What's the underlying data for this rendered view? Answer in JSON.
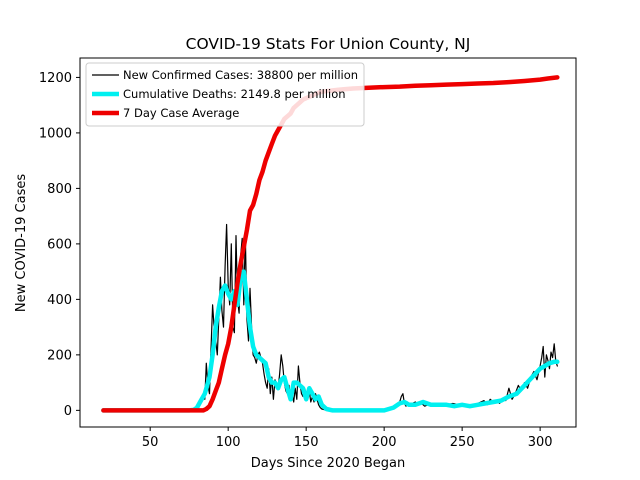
{
  "chart_data": {
    "type": "line",
    "title": "COVID-19 Stats For Union County, NJ",
    "xlabel": "Days Since 2020 Began",
    "ylabel": "New COVID-19 Cases",
    "xlim": [
      5,
      323
    ],
    "ylim": [
      -60,
      1270
    ],
    "xticks": [
      50,
      100,
      150,
      200,
      250,
      300
    ],
    "yticks": [
      0,
      200,
      400,
      600,
      800,
      1000,
      1200
    ],
    "grid": false,
    "legend_position": "upper-left",
    "series": [
      {
        "name": "New Confirmed Cases: 38800 per million",
        "color": "#000000",
        "style": "thin",
        "x": [
          20,
          30,
          40,
          50,
          60,
          70,
          78,
          80,
          82,
          84,
          85,
          86,
          87,
          88,
          89,
          90,
          91,
          92,
          93,
          94,
          95,
          96,
          97,
          98,
          99,
          100,
          101,
          102,
          103,
          104,
          105,
          106,
          107,
          108,
          109,
          110,
          111,
          112,
          113,
          114,
          115,
          116,
          117,
          118,
          119,
          120,
          121,
          122,
          123,
          124,
          125,
          126,
          127,
          128,
          129,
          130,
          131,
          132,
          133,
          134,
          135,
          136,
          137,
          138,
          139,
          140,
          141,
          142,
          143,
          144,
          145,
          146,
          147,
          148,
          149,
          150,
          151,
          152,
          153,
          154,
          155,
          156,
          157,
          158,
          159,
          160,
          162,
          164,
          166,
          168,
          170,
          180,
          190,
          200,
          205,
          208,
          210,
          211,
          212,
          213,
          214,
          215,
          216,
          218,
          220,
          222,
          224,
          226,
          228,
          230,
          233,
          236,
          240,
          244,
          248,
          252,
          256,
          260,
          262,
          264,
          266,
          268,
          270,
          272,
          274,
          276,
          278,
          280,
          282,
          284,
          286,
          288,
          290,
          292,
          294,
          296,
          298,
          300,
          301,
          302,
          303,
          304,
          305,
          306,
          307,
          308,
          309,
          310,
          311
        ],
        "values": [
          0,
          0,
          0,
          0,
          0,
          0,
          0,
          10,
          30,
          60,
          40,
          170,
          90,
          60,
          220,
          380,
          300,
          250,
          200,
          330,
          480,
          360,
          300,
          520,
          670,
          450,
          380,
          600,
          300,
          280,
          630,
          400,
          350,
          560,
          620,
          380,
          640,
          330,
          250,
          440,
          300,
          200,
          190,
          170,
          200,
          210,
          190,
          170,
          130,
          100,
          80,
          150,
          60,
          120,
          40,
          110,
          90,
          80,
          130,
          200,
          160,
          100,
          70,
          60,
          90,
          40,
          60,
          30,
          80,
          40,
          160,
          100,
          60,
          50,
          80,
          60,
          40,
          70,
          30,
          50,
          30,
          60,
          40,
          20,
          10,
          5,
          2,
          0,
          0,
          0,
          0,
          0,
          0,
          0,
          10,
          20,
          30,
          50,
          60,
          25,
          15,
          30,
          20,
          25,
          30,
          20,
          25,
          15,
          20,
          25,
          20,
          15,
          20,
          25,
          20,
          15,
          20,
          25,
          30,
          35,
          20,
          40,
          30,
          35,
          25,
          40,
          35,
          80,
          40,
          60,
          90,
          70,
          100,
          80,
          120,
          140,
          110,
          160,
          190,
          230,
          120,
          200,
          180,
          150,
          210,
          190,
          240,
          180,
          160
        ]
      },
      {
        "name": "Cumulative Deaths: 2149.8 per million",
        "color": "#00f0f0",
        "style": "thick",
        "x": [
          20,
          40,
          60,
          75,
          78,
          80,
          82,
          85,
          88,
          90,
          92,
          94,
          96,
          98,
          100,
          102,
          104,
          106,
          108,
          110,
          112,
          114,
          116,
          118,
          120,
          122,
          124,
          126,
          128,
          130,
          132,
          134,
          136,
          138,
          140,
          142,
          144,
          146,
          148,
          150,
          152,
          154,
          156,
          158,
          160,
          163,
          167,
          170,
          180,
          190,
          200,
          203,
          206,
          210,
          213,
          216,
          220,
          225,
          230,
          235,
          240,
          245,
          250,
          255,
          260,
          265,
          270,
          275,
          280,
          285,
          290,
          295,
          300,
          303,
          306,
          309,
          311
        ],
        "values": [
          0,
          0,
          0,
          0,
          2,
          10,
          30,
          60,
          120,
          200,
          300,
          370,
          430,
          450,
          420,
          400,
          430,
          380,
          480,
          500,
          400,
          300,
          230,
          200,
          190,
          180,
          170,
          120,
          100,
          100,
          80,
          110,
          120,
          80,
          40,
          100,
          100,
          90,
          80,
          40,
          80,
          60,
          40,
          50,
          20,
          5,
          0,
          0,
          0,
          0,
          0,
          5,
          10,
          25,
          30,
          20,
          20,
          30,
          20,
          20,
          20,
          15,
          20,
          15,
          20,
          25,
          30,
          35,
          50,
          60,
          90,
          120,
          150,
          160,
          170,
          175,
          175
        ]
      },
      {
        "name": "7 Day Case Average",
        "color": "#ee0000",
        "style": "thick",
        "x": [
          20,
          40,
          60,
          78,
          84,
          86,
          88,
          90,
          92,
          94,
          96,
          98,
          100,
          102,
          104,
          106,
          108,
          110,
          112,
          114,
          116,
          118,
          120,
          122,
          124,
          126,
          128,
          130,
          132,
          134,
          136,
          138,
          140,
          142,
          144,
          146,
          148,
          150,
          152,
          154,
          156,
          158,
          160,
          162,
          165,
          170,
          175,
          180,
          190,
          200,
          210,
          220,
          230,
          240,
          250,
          260,
          270,
          280,
          290,
          300,
          305,
          311
        ],
        "values": [
          0,
          0,
          0,
          0,
          0,
          5,
          15,
          40,
          70,
          100,
          150,
          200,
          240,
          300,
          380,
          460,
          530,
          590,
          650,
          720,
          740,
          780,
          830,
          860,
          900,
          930,
          960,
          990,
          1010,
          1030,
          1050,
          1060,
          1070,
          1090,
          1100,
          1110,
          1120,
          1125,
          1130,
          1135,
          1140,
          1145,
          1148,
          1150,
          1152,
          1155,
          1158,
          1160,
          1163,
          1165,
          1167,
          1170,
          1172,
          1174,
          1176,
          1178,
          1180,
          1183,
          1187,
          1192,
          1196,
          1200
        ]
      }
    ]
  }
}
